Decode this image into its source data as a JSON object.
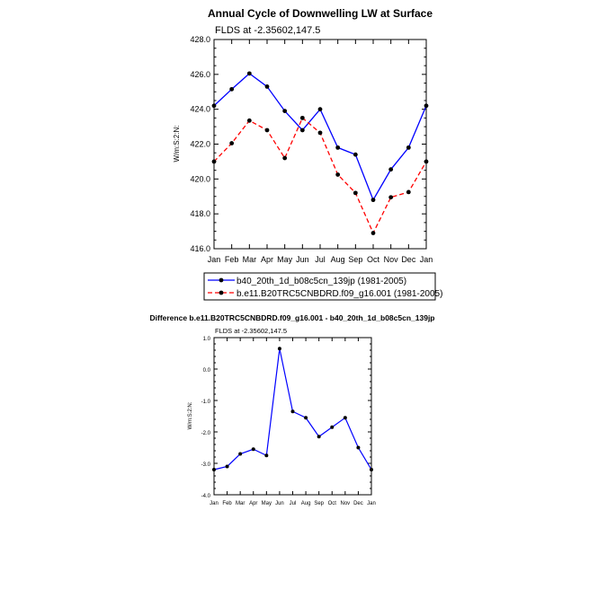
{
  "chart_data": [
    {
      "type": "line",
      "title": "Annual Cycle of Downwelling LW at Surface",
      "subtitle": "FLDS at -2.35602,147.5",
      "xlabel": "",
      "ylabel": "W/m:S:2:N:",
      "categories": [
        "Jan",
        "Feb",
        "Mar",
        "Apr",
        "May",
        "Jun",
        "Jul",
        "Aug",
        "Sep",
        "Oct",
        "Nov",
        "Dec",
        "Jan"
      ],
      "ylim": [
        416.0,
        428.0
      ],
      "yticks": [
        "416.0",
        "418.0",
        "420.0",
        "422.0",
        "424.0",
        "426.0",
        "428.0"
      ],
      "grid": false,
      "legend_position": "bottom",
      "series": [
        {
          "name": "b40_20th_1d_b08c5cn_139jp (1981-2005)",
          "color": "#0000ff",
          "dash": "solid",
          "values": [
            424.2,
            425.15,
            426.05,
            425.3,
            423.9,
            422.8,
            424.0,
            421.8,
            421.4,
            418.8,
            420.55,
            421.8,
            424.2
          ]
        },
        {
          "name": "b.e11.B20TRC5CNBDRD.f09_g16.001 (1981-2005)",
          "color": "#ff0000",
          "dash": "dashed",
          "values": [
            421.0,
            422.05,
            423.35,
            422.8,
            421.2,
            423.5,
            422.65,
            420.25,
            419.2,
            416.9,
            418.95,
            419.25,
            421.0
          ]
        }
      ]
    },
    {
      "type": "line",
      "title": "Difference b.e11.B20TRC5CNBDRD.f09_g16.001 - b40_20th_1d_b08c5cn_139jp",
      "subtitle": "FLDS at -2.35602,147.5",
      "xlabel": "",
      "ylabel": "W/m:S:2:N:",
      "categories": [
        "Jan",
        "Feb",
        "Mar",
        "Apr",
        "May",
        "Jun",
        "Jul",
        "Aug",
        "Sep",
        "Oct",
        "Nov",
        "Dec",
        "Jan"
      ],
      "ylim": [
        -4.0,
        1.0
      ],
      "yticks": [
        "-4.0",
        "-3.0",
        "-2.0",
        "-1.0",
        "0.0",
        "1.0"
      ],
      "grid": false,
      "series": [
        {
          "name": "Difference",
          "color": "#0000ff",
          "dash": "solid",
          "values": [
            -3.2,
            -3.1,
            -2.7,
            -2.55,
            -2.75,
            0.65,
            -1.35,
            -1.55,
            -2.15,
            -1.85,
            -1.55,
            -2.5,
            -3.2
          ]
        }
      ]
    }
  ]
}
